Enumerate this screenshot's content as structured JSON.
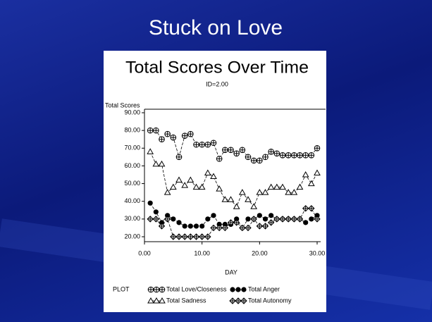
{
  "slide": {
    "title": "Stuck on Love"
  },
  "chart_data": {
    "type": "line",
    "title": "Total Scores Over Time",
    "subtitle": "ID=2.00",
    "y_label": "Total Scores",
    "x_label": "DAY",
    "legend_label": "PLOT",
    "x": [
      1,
      2,
      3,
      4,
      5,
      6,
      7,
      8,
      9,
      10,
      11,
      12,
      13,
      14,
      15,
      16,
      17,
      18,
      19,
      20,
      21,
      22,
      23,
      24,
      25,
      26,
      27,
      28,
      29,
      30
    ],
    "xlim": [
      0,
      30
    ],
    "xticks": [
      {
        "value": 0,
        "label": "0.00"
      },
      {
        "value": 10,
        "label": "10.00"
      },
      {
        "value": 20,
        "label": "20.00"
      },
      {
        "value": 30,
        "label": "30.00"
      }
    ],
    "ylim": [
      20,
      90
    ],
    "yticks": [
      {
        "value": 20,
        "label": "20.00"
      },
      {
        "value": 30,
        "label": "30.00"
      },
      {
        "value": 40,
        "label": "40.00"
      },
      {
        "value": 50,
        "label": "50.00"
      },
      {
        "value": 60,
        "label": "60.00"
      },
      {
        "value": 70,
        "label": "70.00"
      },
      {
        "value": 80,
        "label": "80.00"
      },
      {
        "value": 90,
        "label": "90.00"
      }
    ],
    "series": [
      {
        "name": "Total Love/Closeness",
        "color": "#000000",
        "marker": "circle-plus",
        "values": [
          80,
          80,
          75,
          78,
          76,
          65,
          77,
          78,
          72,
          72,
          72,
          73,
          64,
          69,
          69,
          67,
          69,
          65,
          63,
          63,
          65,
          68,
          67,
          66,
          66,
          66,
          66,
          66,
          66,
          70
        ]
      },
      {
        "name": "Total Anger",
        "color": "#000000",
        "marker": "filled-circle",
        "values": [
          39,
          34,
          28,
          32,
          30,
          28,
          26,
          26,
          26,
          26,
          30,
          32,
          27,
          27,
          27,
          30,
          25,
          30,
          30,
          32,
          30,
          32,
          30,
          30,
          30,
          30,
          30,
          28,
          30,
          32
        ]
      },
      {
        "name": "Total Sadness",
        "color": "#000000",
        "marker": "triangle",
        "values": [
          68,
          61,
          61,
          45,
          48,
          52,
          49,
          52,
          48,
          48,
          56,
          54,
          47,
          41,
          41,
          37,
          45,
          41,
          37,
          45,
          45,
          48,
          48,
          48,
          45,
          45,
          48,
          55,
          50,
          56
        ]
      },
      {
        "name": "Total Autonomy",
        "color": "#000000",
        "marker": "diamond-plus",
        "values": [
          30,
          30,
          26,
          30,
          20,
          20,
          20,
          20,
          20,
          20,
          20,
          25,
          25,
          25,
          28,
          28,
          25,
          25,
          30,
          26,
          26,
          28,
          30,
          30,
          30,
          30,
          30,
          36,
          36,
          30
        ]
      }
    ]
  }
}
